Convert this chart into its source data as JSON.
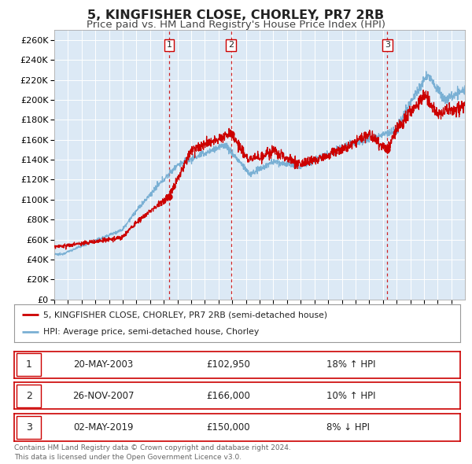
{
  "title": "5, KINGFISHER CLOSE, CHORLEY, PR7 2RB",
  "subtitle": "Price paid vs. HM Land Registry's House Price Index (HPI)",
  "title_fontsize": 11.5,
  "subtitle_fontsize": 9.5,
  "background_color": "#ffffff",
  "plot_background_color": "#dce9f5",
  "grid_color": "#ffffff",
  "ylim": [
    0,
    270000
  ],
  "ytick_step": 20000,
  "red_line_color": "#cc0000",
  "blue_line_color": "#7ab0d4",
  "marker_color": "#cc0000",
  "vline_color": "#cc0000",
  "sale_points": [
    {
      "date_num": 2003.38,
      "price": 102950,
      "label": "1"
    },
    {
      "date_num": 2007.9,
      "price": 166000,
      "label": "2"
    },
    {
      "date_num": 2019.33,
      "price": 150000,
      "label": "3"
    }
  ],
  "legend_red_label": "5, KINGFISHER CLOSE, CHORLEY, PR7 2RB (semi-detached house)",
  "legend_blue_label": "HPI: Average price, semi-detached house, Chorley",
  "table_rows": [
    {
      "num": "1",
      "date": "20-MAY-2003",
      "price": "£102,950",
      "hpi": "18% ↑ HPI"
    },
    {
      "num": "2",
      "date": "26-NOV-2007",
      "price": "£166,000",
      "hpi": "10% ↑ HPI"
    },
    {
      "num": "3",
      "date": "02-MAY-2019",
      "price": "£150,000",
      "hpi": "8% ↓ HPI"
    }
  ],
  "footer": "Contains HM Land Registry data © Crown copyright and database right 2024.\nThis data is licensed under the Open Government Licence v3.0.",
  "xmin": 1995.0,
  "xmax": 2024.99
}
